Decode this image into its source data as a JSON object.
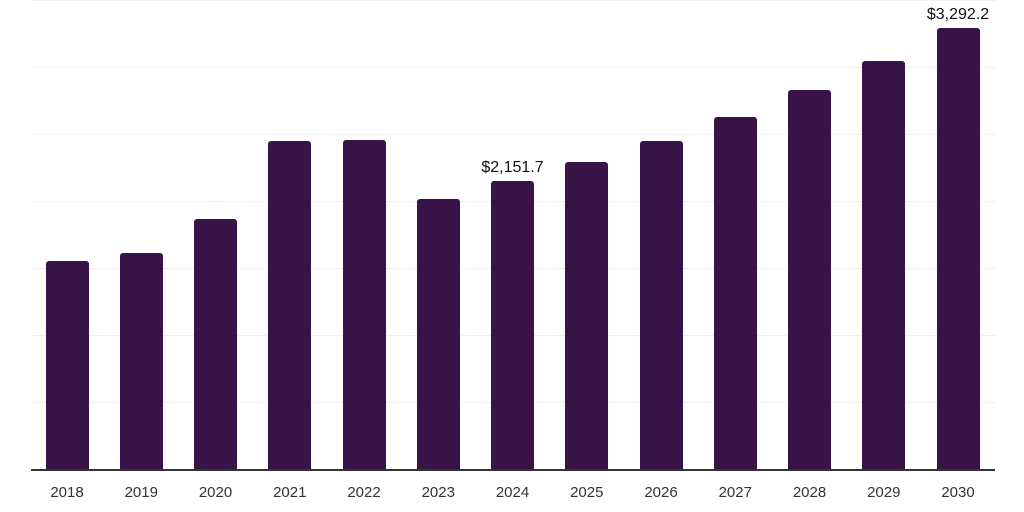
{
  "chart_data": {
    "type": "bar",
    "title": "",
    "xlabel": "",
    "ylabel": "",
    "categories": [
      "2018",
      "2019",
      "2020",
      "2021",
      "2022",
      "2023",
      "2024",
      "2025",
      "2026",
      "2027",
      "2028",
      "2029",
      "2030"
    ],
    "values": [
      1554,
      1614,
      1868,
      2451,
      2459,
      2018,
      2151.7,
      2294,
      2451,
      2630,
      2831,
      3047,
      3292.2
    ],
    "data_labels": [
      {
        "category": "2024",
        "text": "$2,151.7"
      },
      {
        "category": "2030",
        "text": "$3,292.2"
      }
    ],
    "ylim": [
      0,
      3500
    ],
    "ytick_step": 500,
    "grid": true,
    "y_axis_labels_visible": false,
    "legend": null,
    "colors": {
      "bar": "#371347",
      "grid": "#efefef",
      "axis": "#333333"
    }
  }
}
